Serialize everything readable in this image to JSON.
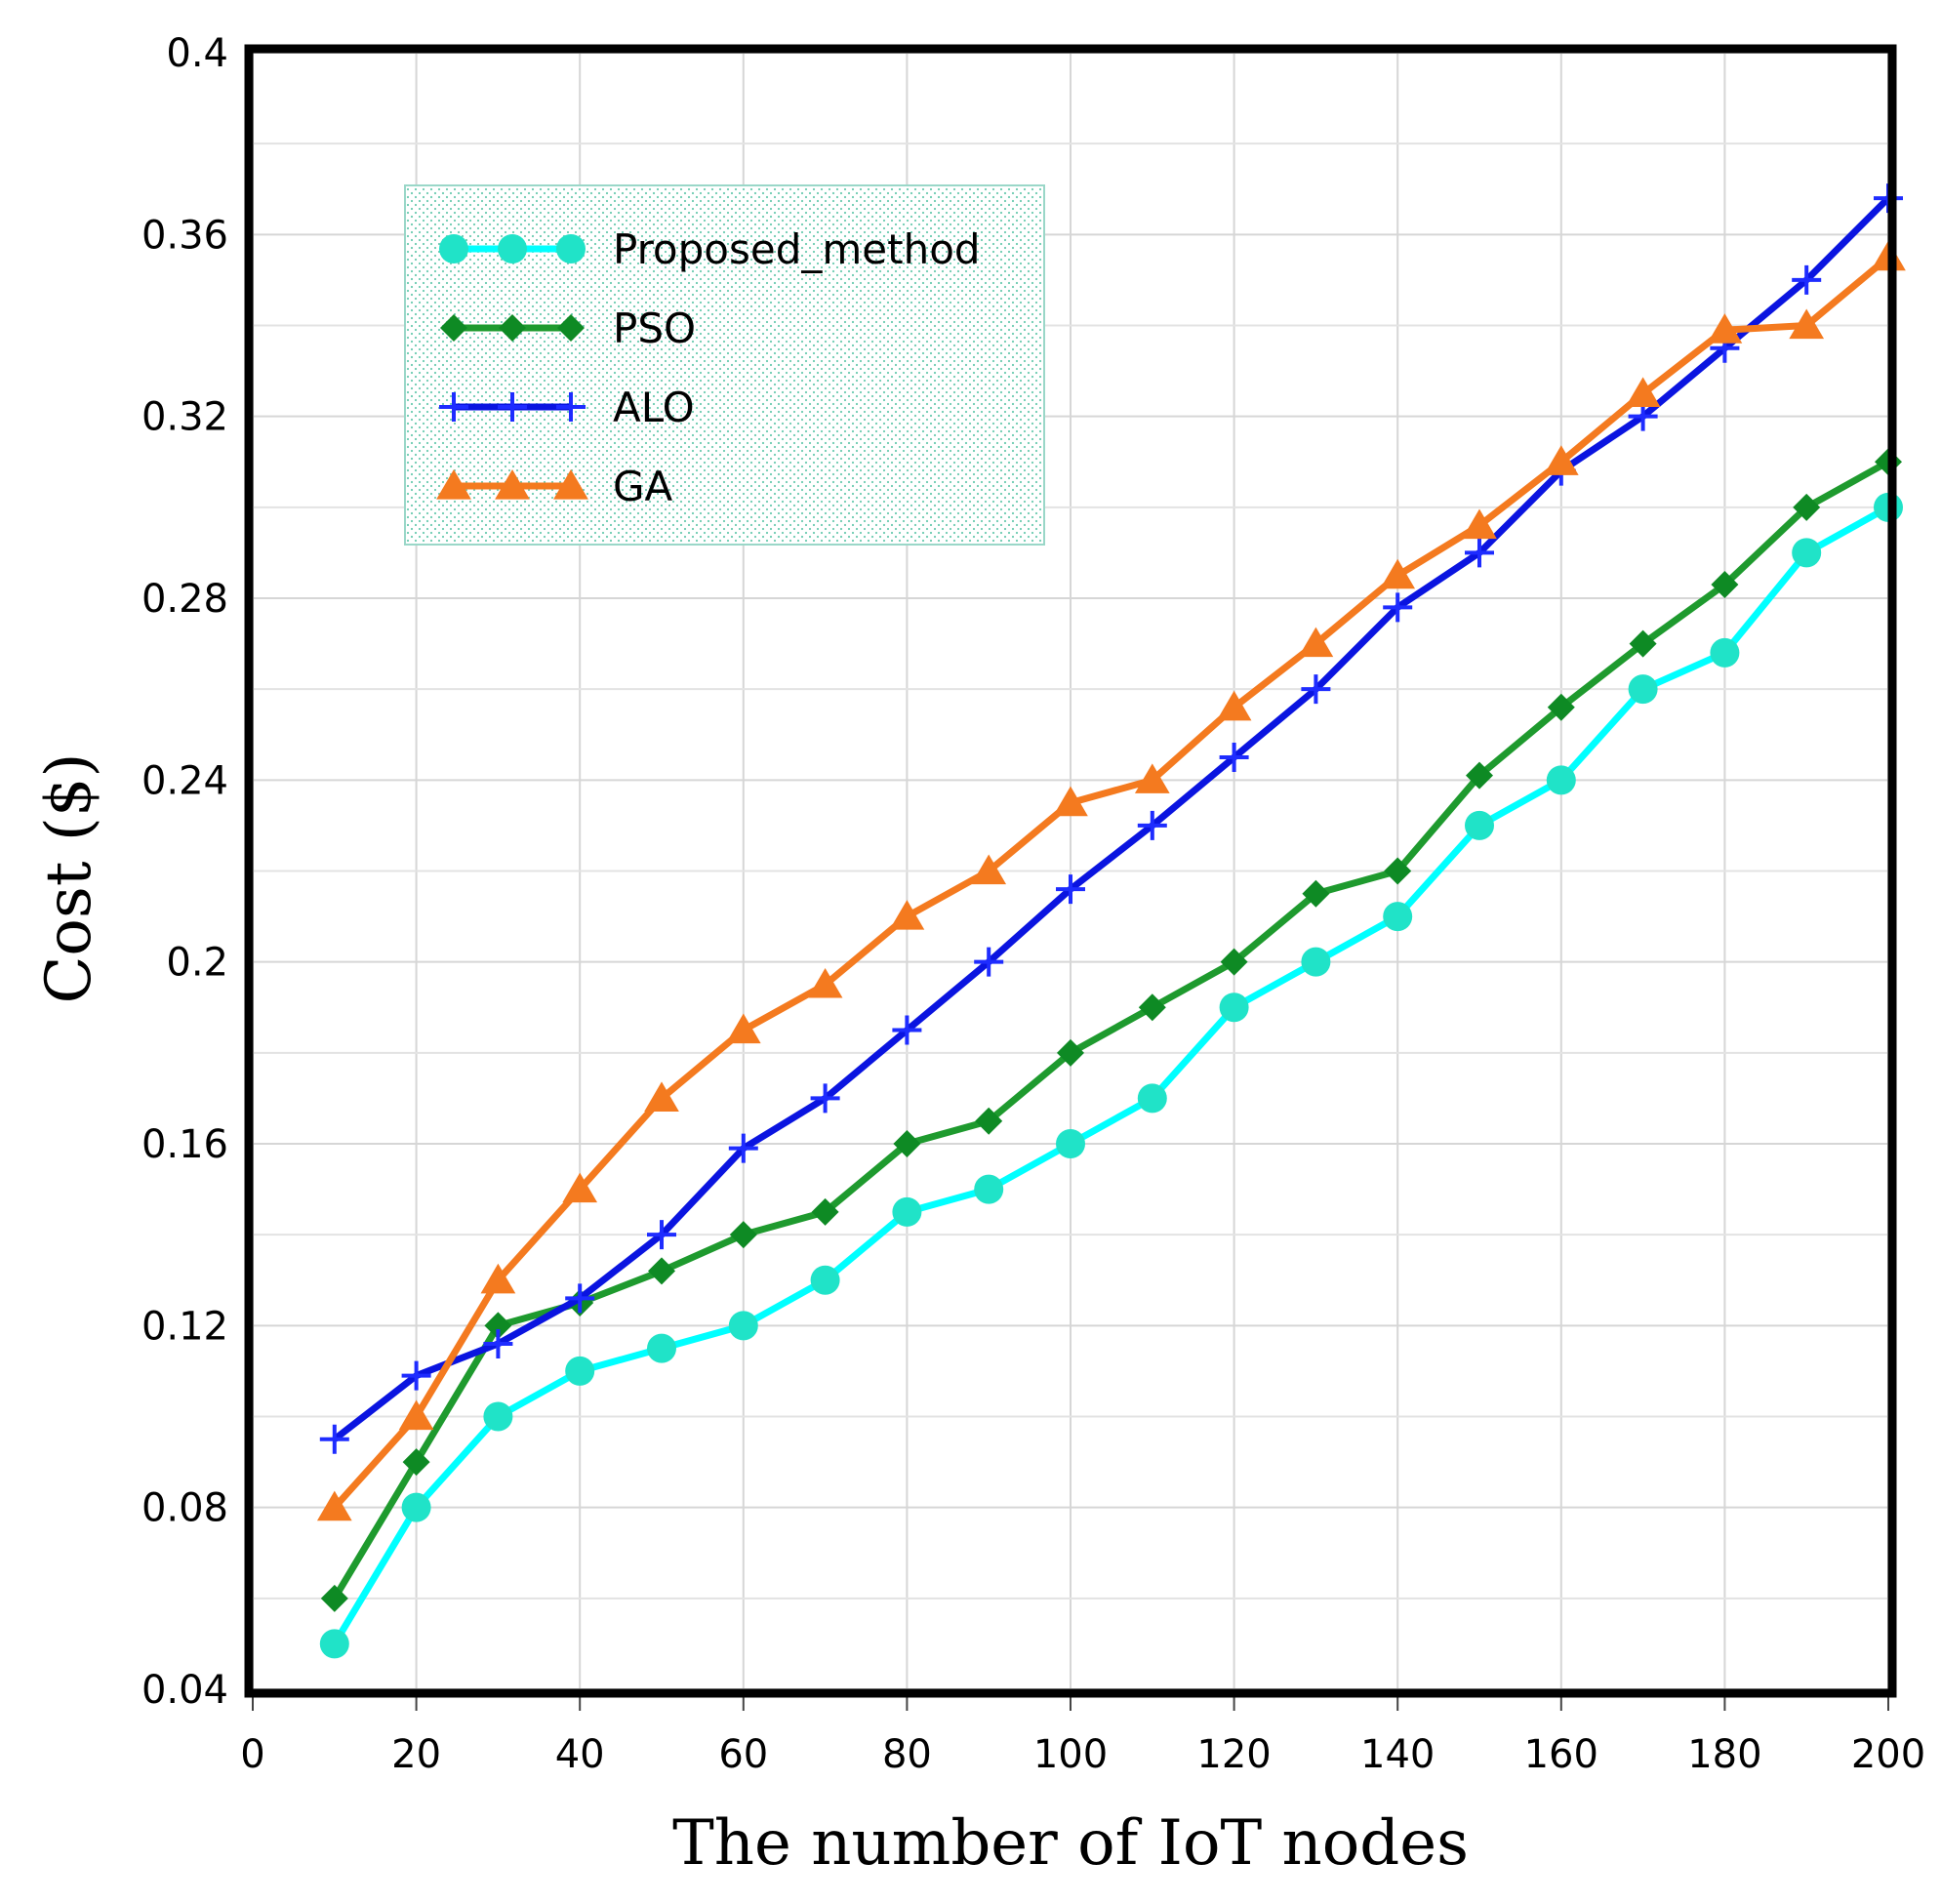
{
  "chart_data": {
    "type": "line",
    "title": "",
    "xlabel": "The number of IoT nodes",
    "ylabel": "Cost ($)",
    "xlim": [
      0,
      200
    ],
    "ylim": [
      0.04,
      0.4
    ],
    "xticks": [
      0,
      20,
      40,
      60,
      80,
      100,
      120,
      140,
      160,
      180,
      200
    ],
    "yticks": [
      0.04,
      0.08,
      0.12,
      0.16,
      0.2,
      0.24,
      0.28,
      0.32,
      0.36,
      0.4
    ],
    "ytick_labels": [
      "0.04",
      "0.08",
      "0.12",
      "0.16",
      "0.2",
      "0.24",
      "0.28",
      "0.32",
      "0.36",
      "0.4"
    ],
    "grid": true,
    "legend_position": "top-left",
    "x": [
      10,
      20,
      30,
      40,
      50,
      60,
      70,
      80,
      90,
      100,
      110,
      120,
      130,
      140,
      150,
      160,
      170,
      180,
      190,
      200
    ],
    "series": [
      {
        "name": "Proposed_method",
        "color": "#00FFFF",
        "marker_color": "#20E3C8",
        "marker": "circle",
        "values": [
          0.05,
          0.08,
          0.1,
          0.11,
          0.115,
          0.12,
          0.13,
          0.145,
          0.15,
          0.16,
          0.17,
          0.19,
          0.2,
          0.21,
          0.23,
          0.24,
          0.26,
          0.268,
          0.29,
          0.3
        ]
      },
      {
        "name": "PSO",
        "color": "#1E9A2E",
        "marker_color": "#0E8A24",
        "marker": "diamond",
        "values": [
          0.06,
          0.09,
          0.12,
          0.125,
          0.132,
          0.14,
          0.145,
          0.16,
          0.165,
          0.18,
          0.19,
          0.2,
          0.215,
          0.22,
          0.241,
          0.256,
          0.27,
          0.283,
          0.3,
          0.31
        ]
      },
      {
        "name": "ALO",
        "color": "#0A14E0",
        "marker_color": "#1E2CFF",
        "marker": "plus",
        "values": [
          0.095,
          0.109,
          0.116,
          0.126,
          0.14,
          0.159,
          0.17,
          0.185,
          0.2,
          0.216,
          0.23,
          0.245,
          0.26,
          0.278,
          0.29,
          0.308,
          0.32,
          0.335,
          0.35,
          0.368
        ]
      },
      {
        "name": "GA",
        "color": "#F47A1F",
        "marker_color": "#F47A1F",
        "marker": "triangle",
        "values": [
          0.08,
          0.1,
          0.13,
          0.15,
          0.17,
          0.185,
          0.195,
          0.21,
          0.22,
          0.235,
          0.24,
          0.256,
          0.27,
          0.285,
          0.296,
          0.31,
          0.325,
          0.339,
          0.34,
          0.355
        ]
      }
    ]
  }
}
